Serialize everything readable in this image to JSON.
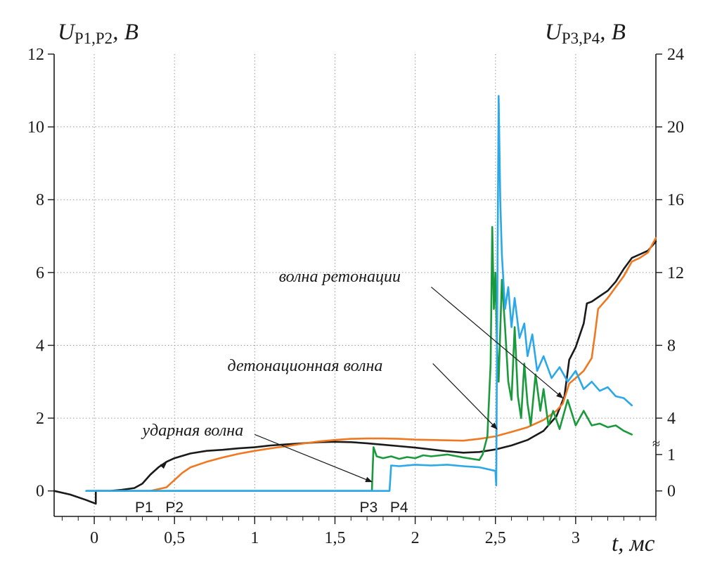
{
  "chart_data": {
    "type": "line",
    "title": "",
    "x_axis": {
      "label": "t, мс",
      "range": [
        -0.25,
        3.5
      ],
      "ticks": [
        0,
        0.5,
        1,
        1.5,
        2,
        2.5,
        3
      ],
      "tick_labels": [
        "0",
        "0,5",
        "1",
        "1,5",
        "2",
        "2,5",
        "3"
      ],
      "minor_step": 0.1
    },
    "y_left": {
      "label_main": "U",
      "label_sub": "P1,P2",
      "label_unit": ", B",
      "range": [
        -0.7,
        12
      ],
      "ticks": [
        0,
        2,
        4,
        6,
        8,
        10,
        12
      ],
      "tick_labels": [
        "0",
        "2",
        "4",
        "6",
        "8",
        "10",
        "12"
      ]
    },
    "y_right": {
      "label_main": "U",
      "label_sub": "P3,P4",
      "label_unit": ", B",
      "ticks_left_equiv": [
        0,
        1,
        2,
        4,
        6,
        8,
        10,
        12
      ],
      "tick_labels": [
        "0",
        "1",
        "4",
        "8",
        "12",
        "16",
        "20",
        "24"
      ],
      "break_mark": "≈",
      "break_at_left_equiv": 1.4
    },
    "grid": true,
    "legend": "none",
    "series": [
      {
        "color": "#1a1a1a",
        "points": [
          [
            -0.25,
            0
          ],
          [
            -0.15,
            -0.1
          ],
          [
            -0.05,
            -0.25
          ],
          [
            0.01,
            -0.35
          ],
          [
            0.01,
            0
          ],
          [
            0.1,
            0
          ],
          [
            0.17,
            0.03
          ],
          [
            0.25,
            0.08
          ],
          [
            0.3,
            0.2
          ],
          [
            0.35,
            0.45
          ],
          [
            0.4,
            0.65
          ],
          [
            0.45,
            0.8
          ],
          [
            0.5,
            0.9
          ],
          [
            0.6,
            1.03
          ],
          [
            0.7,
            1.1
          ],
          [
            0.8,
            1.13
          ],
          [
            0.9,
            1.17
          ],
          [
            1.0,
            1.2
          ],
          [
            1.1,
            1.25
          ],
          [
            1.2,
            1.28
          ],
          [
            1.3,
            1.31
          ],
          [
            1.4,
            1.34
          ],
          [
            1.5,
            1.35
          ],
          [
            1.6,
            1.34
          ],
          [
            1.7,
            1.31
          ],
          [
            1.8,
            1.27
          ],
          [
            1.9,
            1.23
          ],
          [
            2.0,
            1.19
          ],
          [
            2.1,
            1.14
          ],
          [
            2.2,
            1.09
          ],
          [
            2.3,
            1.05
          ],
          [
            2.4,
            1.07
          ],
          [
            2.5,
            1.14
          ],
          [
            2.6,
            1.25
          ],
          [
            2.7,
            1.4
          ],
          [
            2.8,
            1.65
          ],
          [
            2.88,
            2.05
          ],
          [
            2.93,
            2.6
          ],
          [
            2.96,
            3.6
          ],
          [
            3.0,
            3.95
          ],
          [
            3.05,
            4.6
          ],
          [
            3.07,
            5.15
          ],
          [
            3.1,
            5.2
          ],
          [
            3.15,
            5.35
          ],
          [
            3.2,
            5.5
          ],
          [
            3.25,
            5.75
          ],
          [
            3.3,
            6.1
          ],
          [
            3.35,
            6.4
          ],
          [
            3.4,
            6.5
          ],
          [
            3.45,
            6.6
          ],
          [
            3.5,
            6.85
          ]
        ]
      },
      {
        "color": "#f07820",
        "points": [
          [
            -0.05,
            0
          ],
          [
            0.3,
            0
          ],
          [
            0.35,
            0
          ],
          [
            0.4,
            0.05
          ],
          [
            0.45,
            0.1
          ],
          [
            0.5,
            0.3
          ],
          [
            0.55,
            0.5
          ],
          [
            0.6,
            0.65
          ],
          [
            0.7,
            0.8
          ],
          [
            0.8,
            0.92
          ],
          [
            0.9,
            1.02
          ],
          [
            1.0,
            1.1
          ],
          [
            1.1,
            1.17
          ],
          [
            1.2,
            1.23
          ],
          [
            1.3,
            1.3
          ],
          [
            1.4,
            1.36
          ],
          [
            1.5,
            1.4
          ],
          [
            1.6,
            1.43
          ],
          [
            1.7,
            1.44
          ],
          [
            1.8,
            1.44
          ],
          [
            1.9,
            1.43
          ],
          [
            2.0,
            1.41
          ],
          [
            2.1,
            1.4
          ],
          [
            2.2,
            1.39
          ],
          [
            2.3,
            1.38
          ],
          [
            2.4,
            1.43
          ],
          [
            2.5,
            1.5
          ],
          [
            2.6,
            1.62
          ],
          [
            2.7,
            1.75
          ],
          [
            2.8,
            1.95
          ],
          [
            2.88,
            2.2
          ],
          [
            2.92,
            2.4
          ],
          [
            2.96,
            2.95
          ],
          [
            3.0,
            3.1
          ],
          [
            3.05,
            3.3
          ],
          [
            3.1,
            3.65
          ],
          [
            3.12,
            4.3
          ],
          [
            3.14,
            5.0
          ],
          [
            3.2,
            5.3
          ],
          [
            3.3,
            5.9
          ],
          [
            3.35,
            6.3
          ],
          [
            3.4,
            6.4
          ],
          [
            3.45,
            6.55
          ],
          [
            3.5,
            6.95
          ]
        ]
      },
      {
        "color": "#1a9a3c",
        "points": [
          [
            -0.05,
            0
          ],
          [
            1.6,
            0
          ],
          [
            1.73,
            0
          ],
          [
            1.74,
            1.2
          ],
          [
            1.76,
            0.95
          ],
          [
            1.8,
            0.9
          ],
          [
            1.85,
            0.95
          ],
          [
            1.9,
            0.88
          ],
          [
            1.95,
            0.93
          ],
          [
            2.0,
            0.9
          ],
          [
            2.05,
            0.98
          ],
          [
            2.1,
            0.95
          ],
          [
            2.2,
            1.0
          ],
          [
            2.3,
            0.92
          ],
          [
            2.4,
            0.85
          ],
          [
            2.42,
            1.0
          ],
          [
            2.45,
            1.5
          ],
          [
            2.47,
            3.5
          ],
          [
            2.48,
            7.25
          ],
          [
            2.49,
            5.0
          ],
          [
            2.5,
            6.0
          ],
          [
            2.51,
            4.0
          ],
          [
            2.52,
            3.0
          ],
          [
            2.54,
            5.8
          ],
          [
            2.56,
            4.5
          ],
          [
            2.58,
            3.0
          ],
          [
            2.6,
            2.5
          ],
          [
            2.62,
            4.5
          ],
          [
            2.64,
            2.6
          ],
          [
            2.66,
            2.0
          ],
          [
            2.68,
            3.5
          ],
          [
            2.7,
            2.4
          ],
          [
            2.72,
            1.8
          ],
          [
            2.75,
            3.2
          ],
          [
            2.78,
            2.2
          ],
          [
            2.8,
            2.8
          ],
          [
            2.83,
            1.8
          ],
          [
            2.86,
            2.2
          ],
          [
            2.9,
            1.7
          ],
          [
            2.95,
            2.5
          ],
          [
            3.0,
            1.8
          ],
          [
            3.05,
            2.2
          ],
          [
            3.1,
            1.8
          ],
          [
            3.15,
            1.85
          ],
          [
            3.2,
            1.75
          ],
          [
            3.25,
            1.8
          ],
          [
            3.3,
            1.65
          ],
          [
            3.35,
            1.55
          ]
        ]
      },
      {
        "color": "#2aa8e8",
        "points": [
          [
            -0.05,
            0
          ],
          [
            1.8,
            0
          ],
          [
            1.84,
            0
          ],
          [
            1.85,
            0.7
          ],
          [
            1.9,
            0.68
          ],
          [
            2.0,
            0.72
          ],
          [
            2.1,
            0.7
          ],
          [
            2.2,
            0.72
          ],
          [
            2.3,
            0.68
          ],
          [
            2.4,
            0.65
          ],
          [
            2.5,
            0.55
          ],
          [
            2.505,
            0.15
          ],
          [
            2.51,
            4.0
          ],
          [
            2.52,
            10.85
          ],
          [
            2.53,
            8.0
          ],
          [
            2.54,
            6.5
          ],
          [
            2.56,
            5.0
          ],
          [
            2.58,
            5.6
          ],
          [
            2.6,
            4.5
          ],
          [
            2.62,
            5.3
          ],
          [
            2.65,
            4.2
          ],
          [
            2.68,
            4.6
          ],
          [
            2.7,
            3.7
          ],
          [
            2.73,
            4.3
          ],
          [
            2.76,
            3.3
          ],
          [
            2.8,
            3.7
          ],
          [
            2.85,
            3.1
          ],
          [
            2.9,
            3.4
          ],
          [
            2.95,
            3.0
          ],
          [
            3.0,
            3.3
          ],
          [
            3.05,
            2.8
          ],
          [
            3.1,
            3.0
          ],
          [
            3.15,
            2.75
          ],
          [
            3.2,
            2.85
          ],
          [
            3.25,
            2.6
          ],
          [
            3.3,
            2.55
          ],
          [
            3.35,
            2.35
          ]
        ]
      }
    ],
    "annotations": [
      {
        "text": "волна ретонации",
        "tx": 1.15,
        "ty": 5.75,
        "from": [
          2.1,
          5.6
        ],
        "to": [
          2.92,
          2.55
        ]
      },
      {
        "text": "детонационная волна",
        "tx": 0.83,
        "ty": 3.3,
        "from": [
          2.11,
          3.5
        ],
        "to": [
          2.51,
          1.7
        ]
      },
      {
        "text": "ударная волна",
        "tx": 0.3,
        "ty": 1.52,
        "from": [
          1.0,
          1.55
        ],
        "to": [
          1.73,
          0.25
        ]
      },
      {
        "text": "",
        "from": [
          0.42,
          0.66
        ],
        "to": [
          0.45,
          0.78
        ]
      }
    ],
    "sensor_labels": [
      {
        "text": "P1",
        "x": 0.31
      },
      {
        "text": "P2",
        "x": 0.5
      },
      {
        "text": "P3",
        "x": 1.71
      },
      {
        "text": "P4",
        "x": 1.9
      }
    ]
  }
}
